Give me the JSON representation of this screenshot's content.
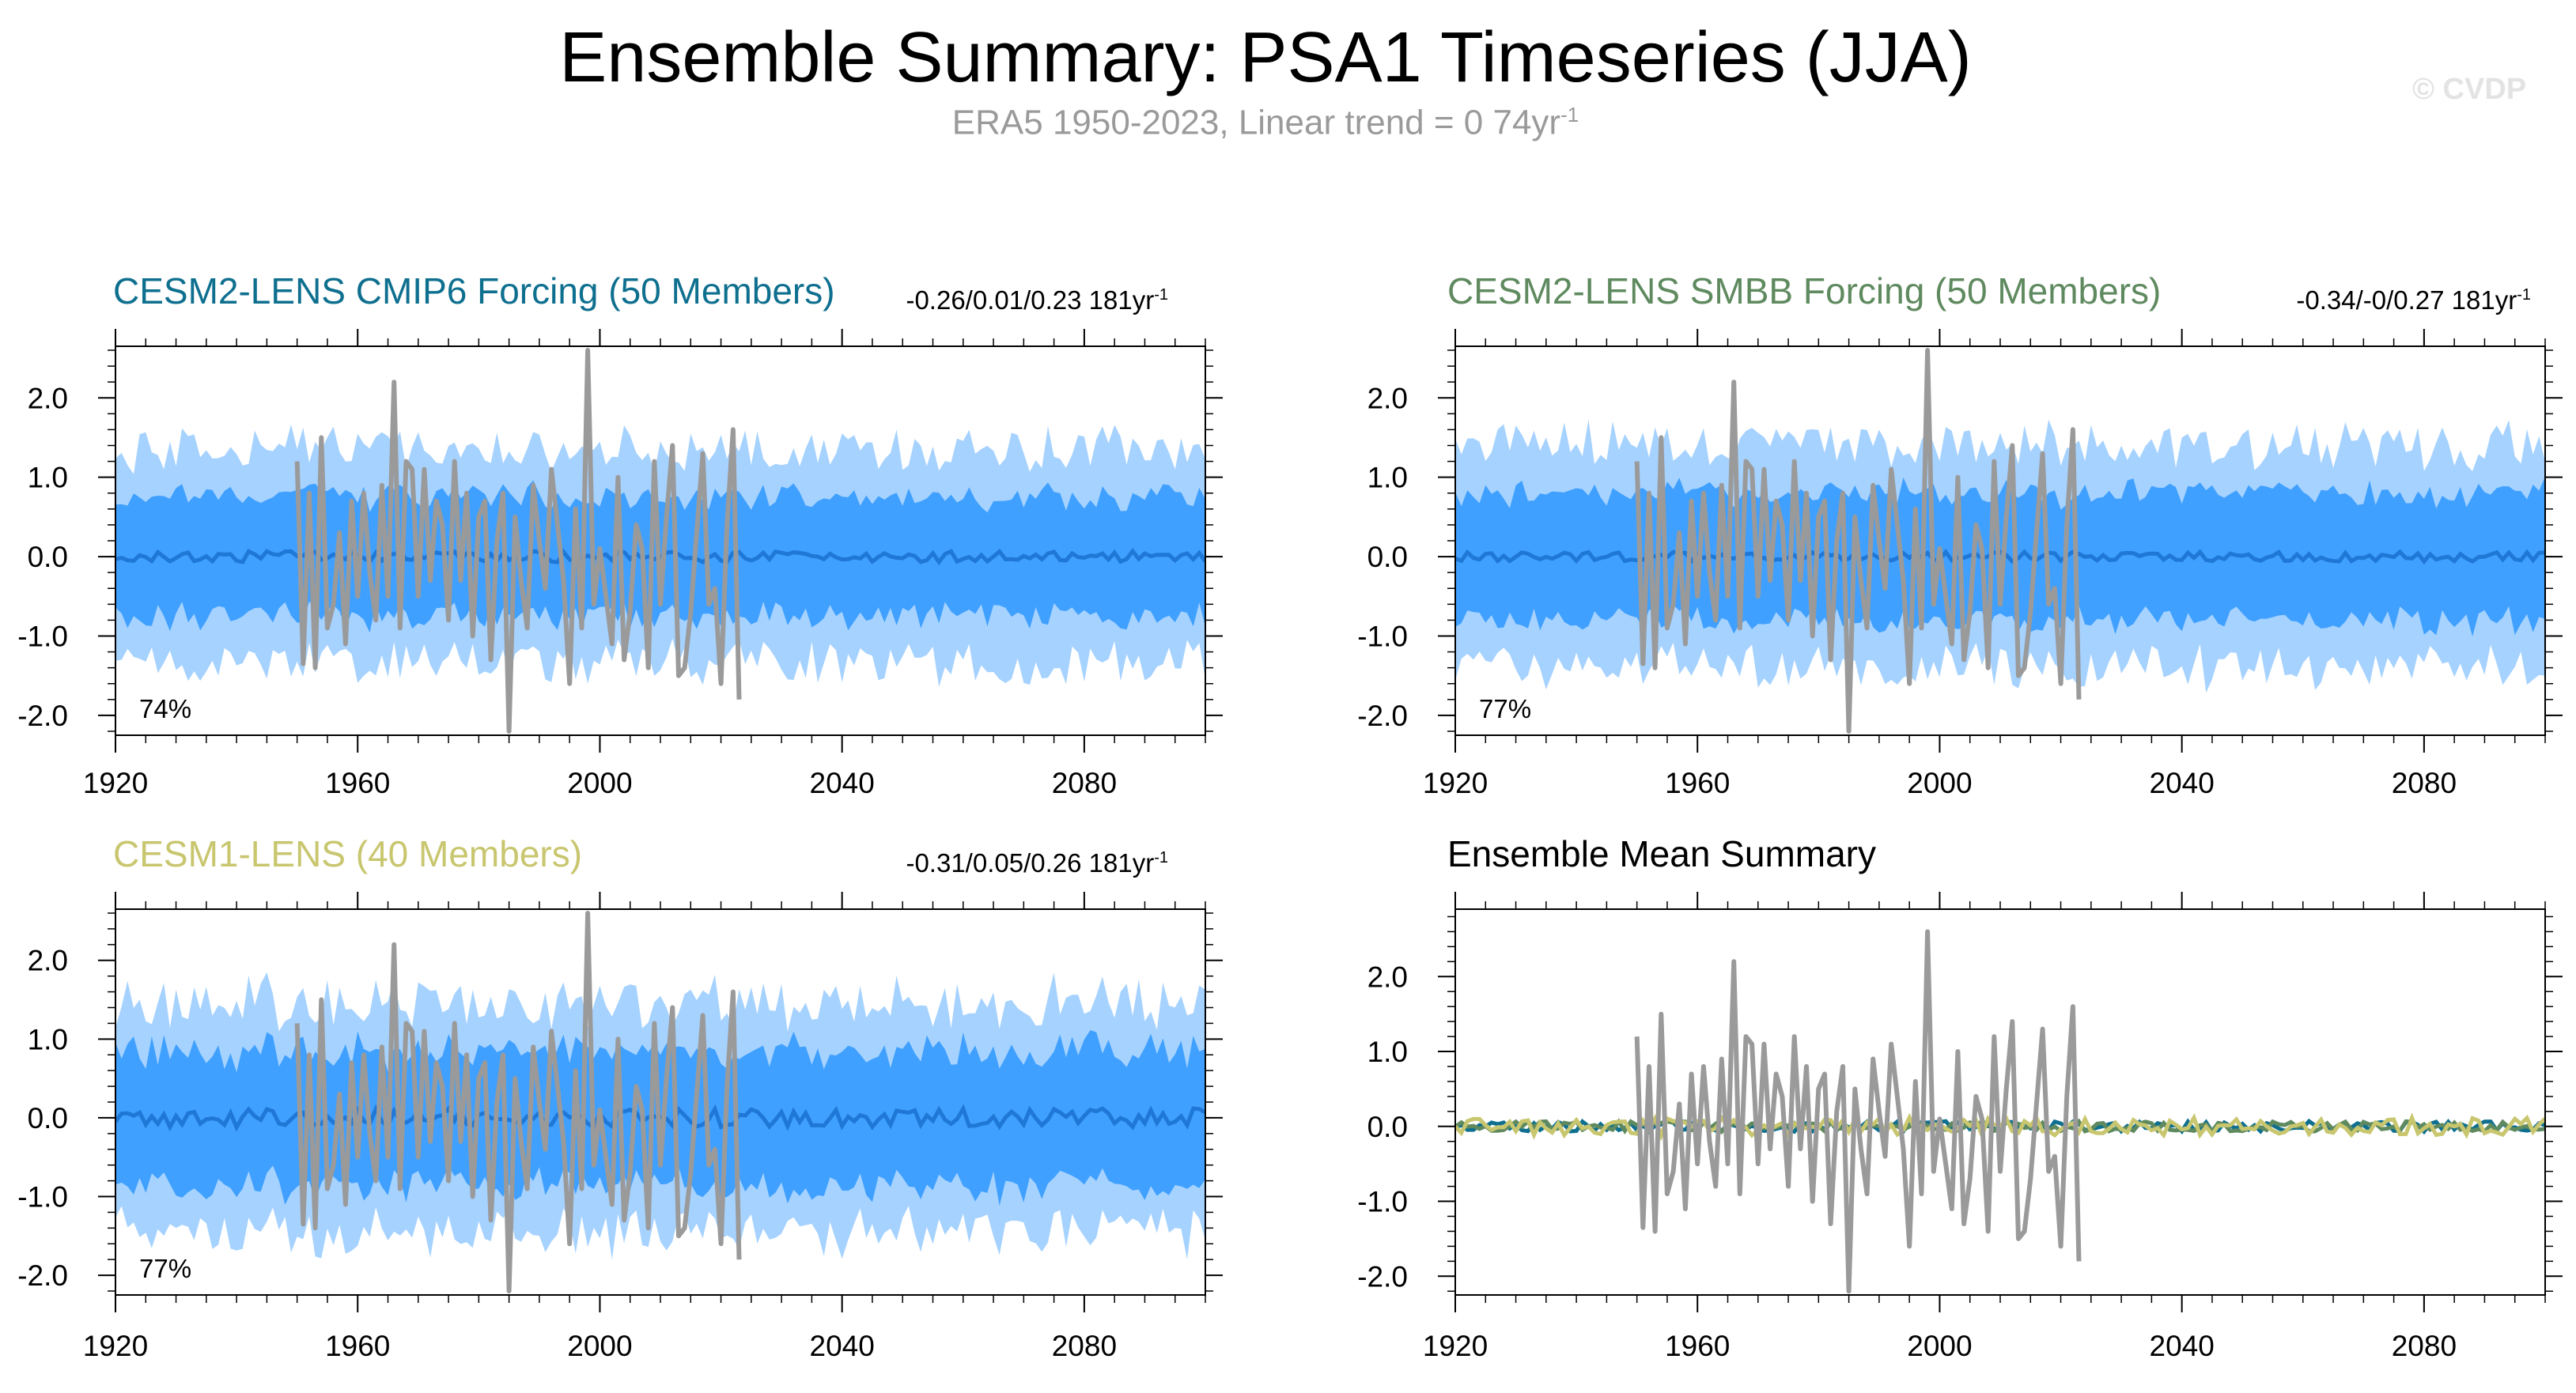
{
  "title": "Ensemble Summary: PSA1 Timeseries (JJA)",
  "subtitle": {
    "prefix": "ERA5 1950-2023, Linear trend = 0 74yr",
    "exponent": "-1"
  },
  "watermark": "© CVDP",
  "colors": {
    "inner_band": "#3fa0ff",
    "outer_band": "#a6d2ff",
    "mean_line": "#1f77d6",
    "obs_line": "#9a9a9a",
    "cesm2_cmip6": "#0e6f8f",
    "cesm2_smbb": "#5f8a5f",
    "cesm1": "#c8c66e"
  },
  "panels": [
    {
      "title": "CESM2-LENS CMIP6 Forcing (50 Members)",
      "title_color": "#0e6f8f",
      "stats": "-0.26/0.01/0.23 181yr",
      "stats_exp": "-1",
      "percent": "74%"
    },
    {
      "title": "CESM2-LENS SMBB Forcing (50 Members)",
      "title_color": "#5f8a5f",
      "stats": "-0.34/-0/0.27 181yr",
      "stats_exp": "-1",
      "percent": "77%"
    },
    {
      "title": "CESM1-LENS (40 Members)",
      "title_color": "#c8c66e",
      "stats": "-0.31/0.05/0.26 181yr",
      "stats_exp": "-1",
      "percent": "77%"
    },
    {
      "title": "Ensemble Mean Summary",
      "title_color": "#000000"
    }
  ],
  "chart_data": [
    {
      "type": "area",
      "name": "CESM2-LENS CMIP6 Forcing (50 Members)",
      "xlim": [
        1920,
        2100
      ],
      "ylim": [
        -2.25,
        2.65
      ],
      "x_ticks": [
        1920,
        1960,
        2000,
        2040,
        2080
      ],
      "y_ticks": [
        2.0,
        1.0,
        0.0,
        -1.0,
        -2.0
      ],
      "y_tick_labels": [
        "2.0",
        "1.0",
        "0.0",
        "-1.0",
        "-2.0"
      ],
      "ensemble_bands": {
        "outer_half_width": 1.35,
        "inner_half_width": 0.75,
        "mean_amplitude": 0.07
      },
      "observed": {
        "x": [
          1950,
          1951,
          1952,
          1953,
          1954,
          1955,
          1956,
          1957,
          1958,
          1959,
          1960,
          1961,
          1962,
          1963,
          1964,
          1965,
          1966,
          1967,
          1968,
          1969,
          1970,
          1971,
          1972,
          1973,
          1974,
          1975,
          1976,
          1977,
          1978,
          1979,
          1980,
          1981,
          1982,
          1983,
          1984,
          1985,
          1986,
          1987,
          1988,
          1989,
          1990,
          1991,
          1992,
          1993,
          1994,
          1995,
          1996,
          1997,
          1998,
          1999,
          2000,
          2001,
          2002,
          2003,
          2004,
          2005,
          2006,
          2007,
          2008,
          2009,
          2010,
          2011,
          2012,
          2013,
          2014,
          2015,
          2016,
          2017,
          2018,
          2019,
          2020,
          2021,
          2022,
          2023
        ],
        "y": [
          1.2,
          -1.35,
          0.8,
          -1.4,
          1.5,
          -0.9,
          -0.6,
          0.3,
          -1.1,
          0.7,
          -0.5,
          0.8,
          -0.2,
          -0.8,
          0.9,
          -0.5,
          2.2,
          -0.9,
          1.2,
          1.1,
          -0.5,
          1.1,
          -0.3,
          0.7,
          0.4,
          -0.8,
          1.2,
          -0.3,
          0.8,
          -1.0,
          0.5,
          0.7,
          -1.3,
          0.2,
          0.8,
          -2.2,
          0.5,
          -0.3,
          -0.9,
          0.9,
          0.2,
          -0.4,
          1.1,
          0.4,
          -0.3,
          -1.6,
          0.6,
          -0.9,
          2.6,
          -0.6,
          0.1,
          -0.5,
          -1.1,
          1.0,
          -1.3,
          -0.7,
          0.4,
          0.1,
          -1.4,
          1.2,
          -0.6,
          0.5,
          1.4,
          -1.5,
          -1.4,
          -0.7,
          0.3,
          1.3,
          -0.6,
          -0.4,
          -1.6,
          0.4,
          1.6,
          -1.8
        ]
      },
      "annotation": "74%"
    },
    {
      "type": "area",
      "name": "CESM2-LENS SMBB Forcing (50 Members)",
      "xlim": [
        1920,
        2100
      ],
      "ylim": [
        -2.25,
        2.65
      ],
      "x_ticks": [
        1920,
        1960,
        2000,
        2040,
        2080
      ],
      "y_ticks": [
        2.0,
        1.0,
        0.0,
        -1.0,
        -2.0
      ],
      "y_tick_labels": [
        "2.0",
        "1.0",
        "0.0",
        "-1.0",
        "-2.0"
      ],
      "ensemble_bands": {
        "outer_half_width": 1.4,
        "inner_half_width": 0.8,
        "mean_amplitude": 0.06
      },
      "observed": {
        "same_as": 0
      },
      "annotation": "77%"
    },
    {
      "type": "area",
      "name": "CESM1-LENS (40 Members)",
      "xlim": [
        1920,
        2100
      ],
      "ylim": [
        -2.25,
        2.65
      ],
      "x_ticks": [
        1920,
        1960,
        2000,
        2040,
        2080
      ],
      "y_ticks": [
        2.0,
        1.0,
        0.0,
        -1.0,
        -2.0
      ],
      "y_tick_labels": [
        "2.0",
        "1.0",
        "0.0",
        "-1.0",
        "-2.0"
      ],
      "ensemble_bands": {
        "outer_half_width": 1.45,
        "inner_half_width": 0.85,
        "mean_amplitude": 0.12
      },
      "observed": {
        "same_as": 0
      },
      "annotation": "77%"
    },
    {
      "type": "line",
      "name": "Ensemble Mean Summary",
      "xlim": [
        1920,
        2100
      ],
      "ylim": [
        -2.25,
        2.9
      ],
      "x_ticks": [
        1920,
        1960,
        2000,
        2040,
        2080
      ],
      "y_ticks": [
        2.0,
        1.0,
        0.0,
        -1.0,
        -2.0
      ],
      "y_tick_labels": [
        "2.0",
        "1.0",
        "0.0",
        "-1.0",
        "-2.0"
      ],
      "series": [
        {
          "color": "#0e6f8f",
          "amplitude": 0.07
        },
        {
          "color": "#5f8a5f",
          "amplitude": 0.07
        },
        {
          "color": "#c8c66e",
          "amplitude": 0.12
        }
      ],
      "observed": {
        "same_as": 0
      }
    }
  ]
}
